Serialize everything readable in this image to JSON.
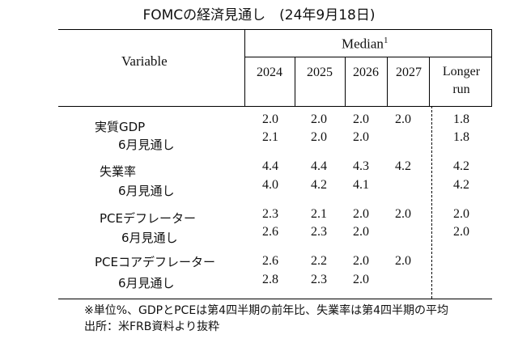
{
  "title": "FOMCの経済見通し　(24年9月18日)",
  "header": {
    "variable_label": "Variable",
    "median_label": "Median",
    "median_footnote": "1",
    "years": [
      "2024",
      "2025",
      "2026",
      "2027"
    ],
    "longer_run": [
      "Longer",
      "run"
    ]
  },
  "rows": [
    {
      "label": "実質GDP",
      "values": [
        "2.0",
        "2.0",
        "2.0",
        "2.0"
      ],
      "longer": "1.8"
    },
    {
      "label": "6月見通し",
      "values": [
        "2.1",
        "2.0",
        "2.0",
        ""
      ],
      "longer": "1.8"
    },
    {
      "label": "失業率",
      "values": [
        "4.4",
        "4.4",
        "4.3",
        "4.2"
      ],
      "longer": "4.2"
    },
    {
      "label": "6月見通し",
      "values": [
        "4.0",
        "4.2",
        "4.1",
        ""
      ],
      "longer": "4.2"
    },
    {
      "label": "PCEデフレーター",
      "values": [
        "2.3",
        "2.1",
        "2.0",
        "2.0"
      ],
      "longer": "2.0"
    },
    {
      "label": "6月見通し",
      "values": [
        "2.6",
        "2.3",
        "2.0",
        ""
      ],
      "longer": "2.0"
    },
    {
      "label": "PCEコアデフレーター",
      "values": [
        "2.6",
        "2.2",
        "2.0",
        "2.0"
      ],
      "longer": ""
    },
    {
      "label": "6月見通し",
      "values": [
        "2.8",
        "2.3",
        "2.0",
        ""
      ],
      "longer": ""
    }
  ],
  "notes": [
    "※単位%、GDPとPCEは第4四半期の前年比、失業率は第4四半期の平均",
    "出所：米FRB資料より抜粋"
  ]
}
